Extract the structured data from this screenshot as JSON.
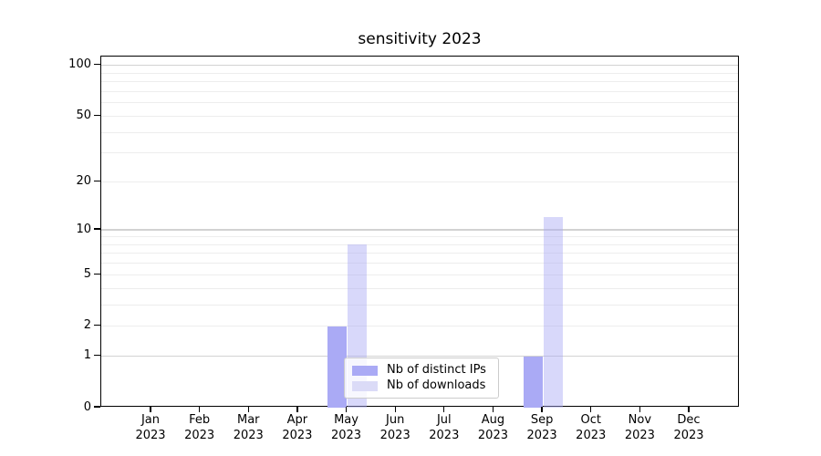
{
  "chart_data": {
    "type": "bar",
    "title": "sensitivity 2023",
    "categories": [
      "Jan",
      "Feb",
      "Mar",
      "Apr",
      "May",
      "Jun",
      "Jul",
      "Aug",
      "Sep",
      "Oct",
      "Nov",
      "Dec"
    ],
    "category_year": "2023",
    "series": [
      {
        "name": "Nb of distinct IPs",
        "color": "#aaaaf5",
        "fill": "#aaaaf5",
        "values": [
          0,
          0,
          0,
          0,
          2,
          0,
          0,
          0,
          1,
          0,
          0,
          0
        ]
      },
      {
        "name": "Nb of downloads",
        "color": "#dbdbf7",
        "fill": "rgba(169,169,244,0.45)",
        "values": [
          0,
          0,
          0,
          0,
          8,
          0,
          0,
          0,
          12,
          0,
          0,
          0
        ]
      }
    ],
    "y_axis": {
      "scale": "log1p",
      "tick_values": [
        0,
        1,
        2,
        5,
        10,
        20,
        50,
        100
      ],
      "tick_labels": [
        "0",
        "1",
        "2",
        "5",
        "10",
        "20",
        "50",
        "100"
      ],
      "major_grid_values": [
        1,
        10,
        100
      ],
      "minor_grid_values": [
        2,
        3,
        4,
        5,
        6,
        7,
        8,
        9,
        20,
        30,
        40,
        50,
        60,
        70,
        80,
        90
      ],
      "range": [
        0,
        113
      ]
    },
    "x_axis": {
      "tick_count": 12
    },
    "legend": {
      "position": "lower center",
      "entries": [
        "Nb of distinct IPs",
        "Nb of downloads"
      ]
    },
    "grid": "on",
    "colors": {
      "major_grid": "#d2d2d2",
      "minor_grid": "#ededed",
      "spine": "#000000",
      "text": "#000000",
      "background": "#ffffff",
      "legend_border": "#cccccc"
    }
  }
}
